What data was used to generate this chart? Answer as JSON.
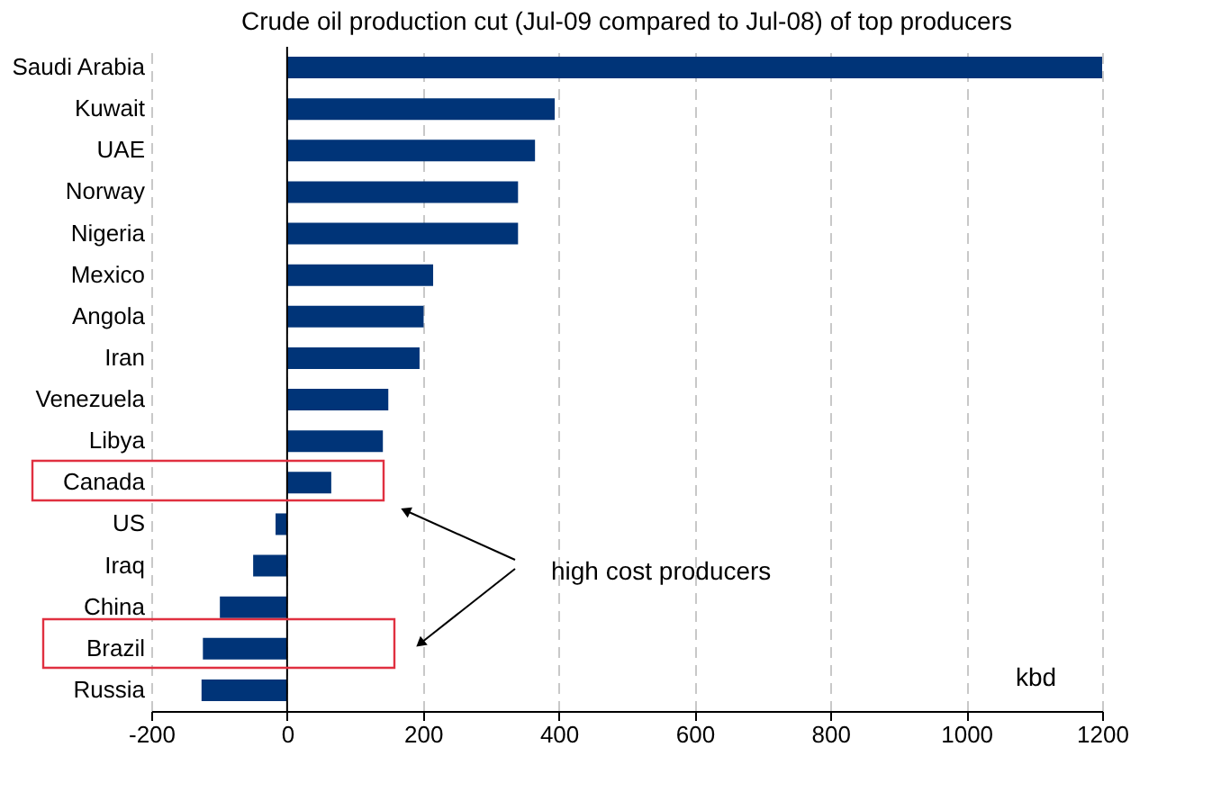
{
  "chart_data": {
    "type": "bar",
    "orientation": "horizontal",
    "title": "Crude oil production cut (Jul-09 compared to Jul-08) of top producers",
    "categories": [
      "Saudi Arabia",
      "Kuwait",
      "UAE",
      "Norway",
      "Nigeria",
      "Mexico",
      "Angola",
      "Iran",
      "Venezuela",
      "Libya",
      "Canada",
      "US",
      "Iraq",
      "China",
      "Brazil",
      "Russia"
    ],
    "values": [
      1200,
      394,
      365,
      340,
      340,
      215,
      201,
      195,
      149,
      141,
      65,
      -17,
      -50,
      -99,
      -124,
      -126
    ],
    "color": "#003478",
    "xlim": [
      -200,
      1200
    ],
    "xticks": [
      -200,
      0,
      200,
      400,
      600,
      800,
      1000,
      1200
    ],
    "grid": "x",
    "annotations": [
      "high cost producers",
      "kbd"
    ]
  }
}
